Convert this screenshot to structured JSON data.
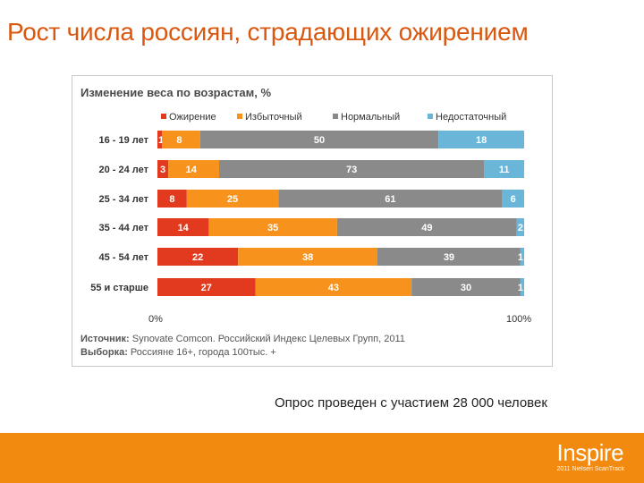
{
  "slide": {
    "title": "Рост числа россиян, страдающих ожирением",
    "footnote": "Опрос проведен с участием 28 000 человек",
    "brand_name": "Inspire",
    "brand_tagline": "2011 Nielsen ScanTrack"
  },
  "colors": {
    "obesity": "#e23a1e",
    "overweight": "#f7931d",
    "normal": "#8a8a8a",
    "underweight": "#6ab6d9",
    "title": "#d9570f",
    "footer": "#f18a0f"
  },
  "chart_data": {
    "type": "bar",
    "orientation": "horizontal-stacked-100",
    "title": "Изменение веса по возрастам, %",
    "categories": [
      "16 - 19 лет",
      "20 - 24 лет",
      "25 - 34 лет",
      "35 - 44 лет",
      "45 - 54 лет",
      "55 и старше"
    ],
    "series": [
      {
        "name": "Ожирение",
        "color": "#e23a1e",
        "values": [
          1,
          3,
          8,
          14,
          22,
          27
        ]
      },
      {
        "name": "Избыточный",
        "color": "#f7931d",
        "values": [
          8,
          14,
          25,
          35,
          38,
          43
        ]
      },
      {
        "name": "Нормальный",
        "color": "#8a8a8a",
        "values": [
          50,
          73,
          61,
          49,
          39,
          30
        ]
      },
      {
        "name": "Недостаточный",
        "color": "#6ab6d9",
        "values": [
          18,
          11,
          6,
          2,
          1,
          1
        ]
      }
    ],
    "xlim": [
      0,
      100
    ],
    "x_tick_labels": [
      "0%",
      "100%"
    ],
    "legend_position": "top",
    "source_label": "Источник:",
    "source_text": "Synovate Comcon. Российский Индекс Целевых Групп, 2011",
    "sample_label": "Выборка:",
    "sample_text": "Россияне 16+, города 100тыс. +"
  }
}
